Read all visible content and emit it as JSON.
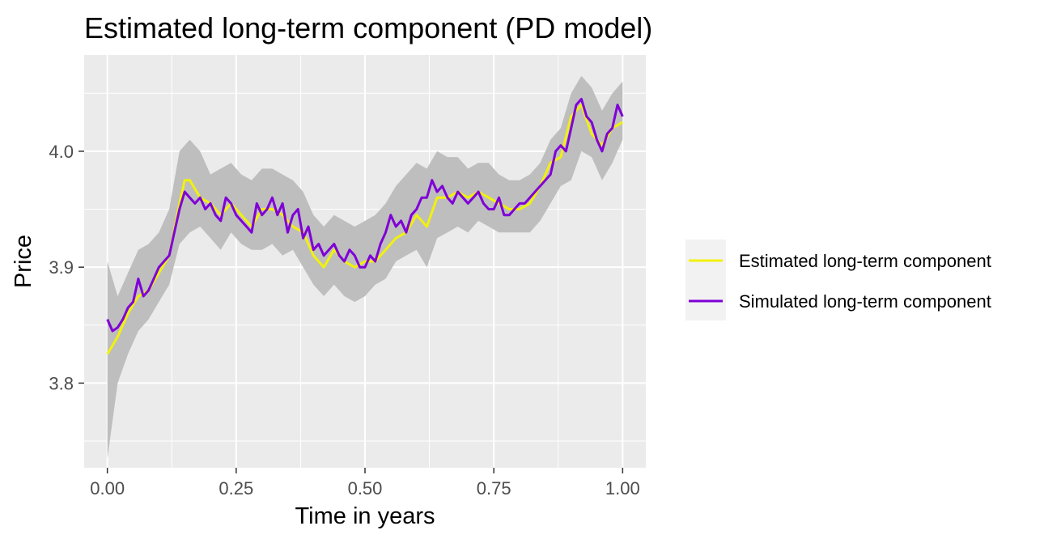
{
  "chart_data": {
    "type": "line",
    "title": "Estimated long-term component (PD model)",
    "xlabel": "Time in years",
    "ylabel": "Price",
    "xlim": [
      -0.045,
      1.045
    ],
    "ylim": [
      3.727,
      4.083
    ],
    "x_ticks": [
      0.0,
      0.25,
      0.5,
      0.75,
      1.0
    ],
    "x_tick_labels": [
      "0.00",
      "0.25",
      "0.50",
      "0.75",
      "1.00"
    ],
    "y_ticks": [
      3.8,
      3.9,
      4.0
    ],
    "y_tick_labels": [
      "3.8",
      "3.9",
      "4.0"
    ],
    "grid": true,
    "legend_position": "right",
    "band": {
      "color": "#bebebe",
      "x": [
        0.0,
        0.02,
        0.04,
        0.06,
        0.08,
        0.1,
        0.12,
        0.14,
        0.16,
        0.18,
        0.2,
        0.22,
        0.24,
        0.26,
        0.28,
        0.3,
        0.32,
        0.34,
        0.36,
        0.38,
        0.4,
        0.42,
        0.44,
        0.46,
        0.48,
        0.5,
        0.52,
        0.54,
        0.56,
        0.58,
        0.6,
        0.62,
        0.64,
        0.66,
        0.68,
        0.7,
        0.72,
        0.74,
        0.76,
        0.78,
        0.8,
        0.82,
        0.84,
        0.86,
        0.88,
        0.9,
        0.92,
        0.94,
        0.96,
        0.98,
        1.0
      ],
      "lower": [
        3.735,
        3.8,
        3.825,
        3.845,
        3.855,
        3.87,
        3.885,
        3.92,
        3.93,
        3.935,
        3.925,
        3.915,
        3.93,
        3.92,
        3.915,
        3.915,
        3.92,
        3.91,
        3.915,
        3.9,
        3.885,
        3.875,
        3.885,
        3.875,
        3.87,
        3.875,
        3.885,
        3.89,
        3.905,
        3.91,
        3.915,
        3.9,
        3.925,
        3.93,
        3.935,
        3.93,
        3.94,
        3.935,
        3.93,
        3.93,
        3.93,
        3.93,
        3.94,
        3.955,
        3.97,
        3.975,
        4.0,
        3.995,
        3.975,
        3.99,
        4.01
      ],
      "upper": [
        3.905,
        3.875,
        3.895,
        3.915,
        3.92,
        3.93,
        3.95,
        4.0,
        4.01,
        4.0,
        3.98,
        3.985,
        3.99,
        3.98,
        3.975,
        3.985,
        3.985,
        3.98,
        3.975,
        3.965,
        3.945,
        3.935,
        3.945,
        3.94,
        3.935,
        3.94,
        3.945,
        3.955,
        3.97,
        3.98,
        3.99,
        3.985,
        4.0,
        3.995,
        3.995,
        3.985,
        3.99,
        3.99,
        3.98,
        3.975,
        3.975,
        3.98,
        3.99,
        4.01,
        4.02,
        4.05,
        4.065,
        4.055,
        4.035,
        4.05,
        4.06
      ]
    },
    "series": [
      {
        "name": "Estimated long-term component",
        "color": "#f1f10e",
        "x": [
          0.0,
          0.02,
          0.04,
          0.06,
          0.08,
          0.1,
          0.12,
          0.14,
          0.15,
          0.16,
          0.18,
          0.2,
          0.22,
          0.24,
          0.26,
          0.28,
          0.3,
          0.32,
          0.34,
          0.36,
          0.38,
          0.4,
          0.42,
          0.44,
          0.46,
          0.48,
          0.5,
          0.52,
          0.54,
          0.56,
          0.58,
          0.6,
          0.62,
          0.64,
          0.66,
          0.68,
          0.7,
          0.72,
          0.74,
          0.76,
          0.78,
          0.8,
          0.82,
          0.84,
          0.86,
          0.88,
          0.9,
          0.92,
          0.94,
          0.96,
          0.98,
          1.0
        ],
        "values": [
          3.825,
          3.84,
          3.86,
          3.875,
          3.88,
          3.895,
          3.91,
          3.955,
          3.975,
          3.975,
          3.96,
          3.955,
          3.945,
          3.955,
          3.945,
          3.935,
          3.95,
          3.95,
          3.945,
          3.935,
          3.93,
          3.91,
          3.9,
          3.915,
          3.905,
          3.9,
          3.905,
          3.905,
          3.915,
          3.925,
          3.93,
          3.945,
          3.935,
          3.96,
          3.96,
          3.965,
          3.96,
          3.965,
          3.96,
          3.955,
          3.95,
          3.95,
          3.955,
          3.97,
          3.99,
          3.995,
          4.03,
          4.04,
          4.015,
          4.005,
          4.02,
          4.025
        ]
      },
      {
        "name": "Simulated long-term component",
        "color": "#7f00d6",
        "x": [
          0.0,
          0.01,
          0.02,
          0.03,
          0.04,
          0.05,
          0.06,
          0.07,
          0.08,
          0.09,
          0.1,
          0.11,
          0.12,
          0.13,
          0.14,
          0.15,
          0.16,
          0.17,
          0.18,
          0.19,
          0.2,
          0.21,
          0.22,
          0.23,
          0.24,
          0.25,
          0.26,
          0.27,
          0.28,
          0.29,
          0.3,
          0.31,
          0.32,
          0.33,
          0.34,
          0.35,
          0.36,
          0.37,
          0.38,
          0.39,
          0.4,
          0.41,
          0.42,
          0.43,
          0.44,
          0.45,
          0.46,
          0.47,
          0.48,
          0.49,
          0.5,
          0.51,
          0.52,
          0.53,
          0.54,
          0.55,
          0.56,
          0.57,
          0.58,
          0.59,
          0.6,
          0.61,
          0.62,
          0.63,
          0.64,
          0.65,
          0.66,
          0.67,
          0.68,
          0.69,
          0.7,
          0.71,
          0.72,
          0.73,
          0.74,
          0.75,
          0.76,
          0.77,
          0.78,
          0.79,
          0.8,
          0.81,
          0.82,
          0.83,
          0.84,
          0.85,
          0.86,
          0.87,
          0.88,
          0.89,
          0.9,
          0.91,
          0.92,
          0.93,
          0.94,
          0.95,
          0.96,
          0.97,
          0.98,
          0.99,
          1.0
        ],
        "values": [
          3.855,
          3.845,
          3.848,
          3.855,
          3.865,
          3.87,
          3.89,
          3.875,
          3.88,
          3.89,
          3.9,
          3.905,
          3.91,
          3.93,
          3.95,
          3.965,
          3.96,
          3.955,
          3.96,
          3.95,
          3.955,
          3.945,
          3.94,
          3.96,
          3.955,
          3.945,
          3.94,
          3.935,
          3.93,
          3.955,
          3.945,
          3.95,
          3.96,
          3.945,
          3.955,
          3.93,
          3.945,
          3.95,
          3.925,
          3.935,
          3.915,
          3.92,
          3.91,
          3.915,
          3.92,
          3.91,
          3.905,
          3.915,
          3.91,
          3.9,
          3.9,
          3.91,
          3.905,
          3.92,
          3.93,
          3.945,
          3.935,
          3.94,
          3.93,
          3.945,
          3.95,
          3.96,
          3.96,
          3.975,
          3.965,
          3.97,
          3.96,
          3.955,
          3.965,
          3.96,
          3.955,
          3.96,
          3.965,
          3.955,
          3.95,
          3.95,
          3.96,
          3.945,
          3.945,
          3.95,
          3.955,
          3.955,
          3.96,
          3.965,
          3.97,
          3.975,
          3.98,
          4.0,
          4.005,
          4.0,
          4.02,
          4.04,
          4.045,
          4.03,
          4.025,
          4.01,
          4.0,
          4.015,
          4.02,
          4.04,
          4.03
        ]
      }
    ]
  }
}
